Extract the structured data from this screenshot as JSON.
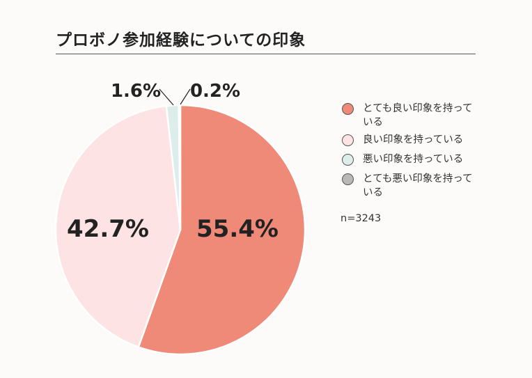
{
  "header": {
    "title": "プロボノ参加経験についての印象"
  },
  "chart_data": {
    "type": "pie",
    "title": "プロボノ参加経験についての印象",
    "categories": [
      "とても良い印象を持っている",
      "良い印象を持っている",
      "悪い印象を持っている",
      "とても悪い印象を持っている"
    ],
    "values": [
      55.4,
      42.7,
      1.6,
      0.2
    ],
    "labels": [
      "55.4%",
      "42.7%",
      "1.6%",
      "0.2%"
    ],
    "colors": [
      "#ef8a79",
      "#fde3e3",
      "#dcedea",
      "#b8b8b8"
    ],
    "start_angle": "12 o'clock",
    "direction": "clockwise",
    "legend_position": "right",
    "sample_size": "n=3243"
  },
  "legend": {
    "items": [
      {
        "label": "とても良い印象を持っている",
        "color": "#ef8a79"
      },
      {
        "label": "良い印象を持っている",
        "color": "#fde3e3"
      },
      {
        "label": "悪い印象を持っている",
        "color": "#dcedea"
      },
      {
        "label": "とても悪い印象を持っている",
        "color": "#b8b8b8"
      }
    ],
    "n_label": "n=3243"
  }
}
